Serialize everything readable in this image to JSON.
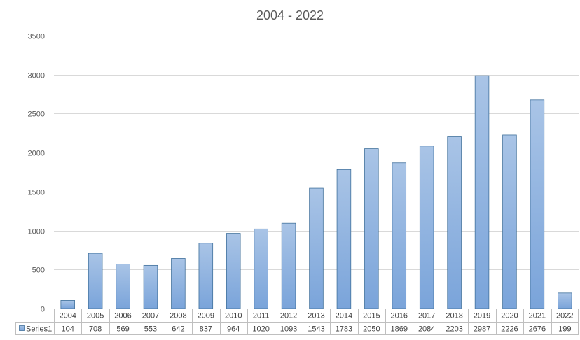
{
  "chart_data": {
    "type": "bar",
    "title": "2004 - 2022",
    "categories": [
      "2004",
      "2005",
      "2006",
      "2007",
      "2008",
      "2009",
      "2010",
      "2011",
      "2012",
      "2013",
      "2014",
      "2015",
      "2016",
      "2017",
      "2018",
      "2019",
      "2020",
      "2021",
      "2022"
    ],
    "series": [
      {
        "name": "Series1",
        "values": [
          104,
          708,
          569,
          553,
          642,
          837,
          964,
          1020,
          1093,
          1543,
          1783,
          2050,
          1869,
          2084,
          2203,
          2987,
          2226,
          2676,
          199
        ],
        "color_top": "#a9c4e6",
        "color_bottom": "#7aa4da",
        "stroke": "#41719c"
      }
    ],
    "ylim": [
      0,
      3500
    ],
    "yticks": [
      "0",
      "500",
      "1000",
      "1500",
      "2000",
      "2500",
      "3000",
      "3500"
    ],
    "grid": true,
    "data_table": true
  }
}
